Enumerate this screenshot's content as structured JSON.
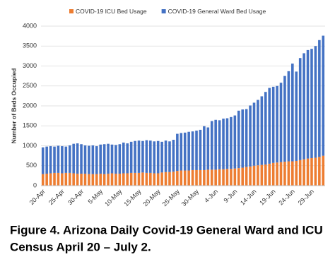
{
  "chart_data": {
    "type": "stacked_bar",
    "y_label": "Number of Beds Occupied",
    "caption": [
      "Figure 4. Arizona Daily Covid-19 General Ward and ICU",
      "Census April 20 – July 2."
    ],
    "categories": [
      "20-Apr",
      null,
      null,
      null,
      null,
      "25-Apr",
      null,
      null,
      null,
      null,
      "30-Apr",
      null,
      null,
      null,
      null,
      "5-May",
      null,
      null,
      null,
      null,
      "10-May",
      null,
      null,
      null,
      null,
      "15-May",
      null,
      null,
      null,
      null,
      "20-May",
      null,
      null,
      null,
      null,
      "25-May",
      null,
      null,
      null,
      null,
      "30-May",
      null,
      null,
      null,
      null,
      "4-Jun",
      null,
      null,
      null,
      null,
      "9-Jun",
      null,
      null,
      null,
      null,
      "14-Jun",
      null,
      null,
      null,
      null,
      "19-Jun",
      null,
      null,
      null,
      null,
      "24-Jun",
      null,
      null,
      null,
      null,
      "29-Jun",
      null,
      null,
      null
    ],
    "series": [
      {
        "name": "COVID-19 ICU Bed Usage",
        "color": "#ed7d31",
        "values": [
          290,
          300,
          310,
          320,
          320,
          310,
          320,
          320,
          310,
          300,
          300,
          300,
          290,
          290,
          290,
          300,
          290,
          300,
          310,
          300,
          300,
          310,
          310,
          320,
          320,
          320,
          330,
          320,
          320,
          310,
          310,
          330,
          340,
          340,
          350,
          370,
          380,
          380,
          380,
          390,
          390,
          390,
          390,
          400,
          400,
          400,
          410,
          410,
          420,
          420,
          430,
          440,
          450,
          470,
          480,
          500,
          510,
          520,
          530,
          550,
          570,
          580,
          590,
          600,
          610,
          610,
          620,
          640,
          660,
          680,
          690,
          700,
          720,
          750
        ]
      },
      {
        "name": "COVID-19 General Ward Bed Usage",
        "color": "#4472c4",
        "values": [
          670,
          680,
          680,
          660,
          680,
          680,
          660,
          690,
          740,
          760,
          740,
          710,
          710,
          720,
          700,
          730,
          750,
          750,
          720,
          720,
          740,
          770,
          750,
          780,
          800,
          810,
          790,
          820,
          810,
          800,
          810,
          770,
          790,
          770,
          800,
          930,
          940,
          950,
          970,
          970,
          990,
          1010,
          1100,
          1060,
          1220,
          1250,
          1230,
          1270,
          1270,
          1300,
          1330,
          1440,
          1460,
          1450,
          1530,
          1580,
          1640,
          1720,
          1820,
          1900,
          1910,
          1920,
          1990,
          2150,
          2260,
          2450,
          2240,
          2560,
          2660,
          2720,
          2740,
          2800,
          2930,
          3010
        ]
      }
    ],
    "ylim": [
      0,
      4000
    ],
    "yticks": [
      0,
      500,
      1000,
      1500,
      2000,
      2500,
      3000,
      3500,
      4000
    ],
    "grid": true,
    "legend": "top"
  }
}
